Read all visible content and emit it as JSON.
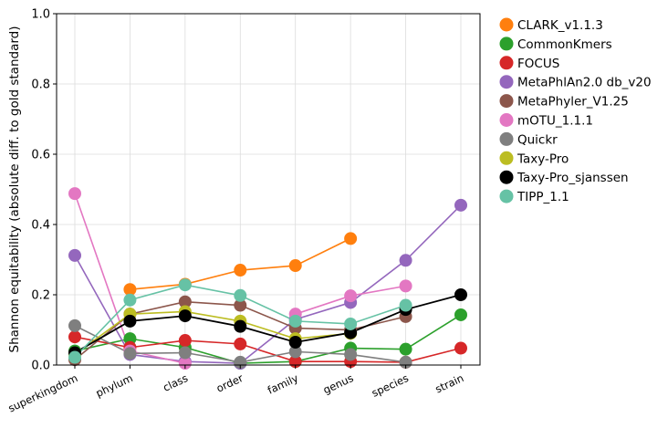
{
  "chart_data": {
    "type": "line",
    "title": "",
    "xlabel": "",
    "ylabel": "Shannon equitability (absolute diff. to gold standard)",
    "ylim": [
      0,
      1.0
    ],
    "yticks": [
      "0.0",
      "0.2",
      "0.4",
      "0.6",
      "0.8",
      "1.0"
    ],
    "categories": [
      "superkingdom",
      "phylum",
      "class",
      "order",
      "family",
      "genus",
      "species",
      "strain"
    ],
    "grid": true,
    "legend_position": "outside-right",
    "series": [
      {
        "name": "CLARK_v1.1.3",
        "color": "#ff7f0e",
        "values": [
          null,
          0.215,
          0.23,
          0.27,
          0.283,
          0.36,
          null,
          null
        ]
      },
      {
        "name": "CommonKmers",
        "color": "#2ca02c",
        "values": [
          0.04,
          0.075,
          0.05,
          0.005,
          0.01,
          0.048,
          0.045,
          0.143
        ]
      },
      {
        "name": "FOCUS",
        "color": "#d62728",
        "values": [
          0.08,
          0.05,
          0.07,
          0.06,
          0.01,
          0.01,
          0.008,
          0.048
        ]
      },
      {
        "name": "MetaPhlAn2.0 db_v20",
        "color": "#9467bd",
        "values": [
          0.312,
          0.03,
          0.01,
          0.005,
          0.13,
          0.178,
          0.298,
          0.455
        ]
      },
      {
        "name": "MetaPhyler_V1.25",
        "color": "#8c564b",
        "values": [
          0.015,
          0.145,
          0.18,
          0.17,
          0.105,
          0.1,
          0.138,
          null
        ]
      },
      {
        "name": "mOTU_1.1.1",
        "color": "#e377c2",
        "values": [
          0.488,
          0.04,
          0.005,
          null,
          0.145,
          0.197,
          0.225,
          null
        ]
      },
      {
        "name": "Quickr",
        "color": "#7f7f7f",
        "values": [
          0.112,
          0.033,
          0.035,
          0.008,
          0.038,
          0.03,
          0.008,
          null
        ]
      },
      {
        "name": "Taxy-Pro",
        "color": "#bcbd22",
        "values": [
          0.03,
          0.145,
          0.152,
          0.125,
          0.075,
          0.09,
          null,
          null
        ]
      },
      {
        "name": "Taxy-Pro_sjanssen",
        "color": "#000000",
        "values": [
          0.035,
          0.125,
          0.14,
          0.11,
          0.065,
          0.092,
          0.158,
          0.2
        ]
      },
      {
        "name": "TIPP_1.1",
        "color": "#66c2a5",
        "values": [
          0.022,
          0.185,
          0.228,
          0.198,
          0.125,
          0.117,
          0.17,
          null
        ]
      }
    ]
  }
}
